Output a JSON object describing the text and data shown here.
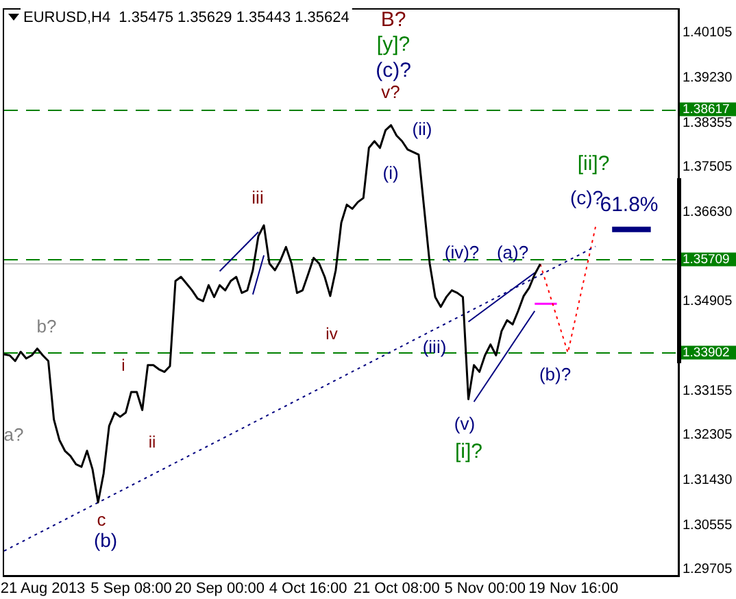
{
  "chart_data": {
    "type": "line",
    "title": "EURUSD,H4  1.35475 1.35629 1.35443 1.35624",
    "categories": [
      null,
      null,
      null,
      null,
      null,
      null,
      null,
      "21 Aug 2013",
      null,
      null,
      null,
      null,
      null,
      null,
      null,
      null,
      null,
      null,
      null,
      null,
      null,
      null,
      null,
      "5 Sep 08:00",
      null,
      null,
      null,
      null,
      null,
      null,
      null,
      null,
      null,
      null,
      null,
      null,
      null,
      null,
      null,
      "20 Sep 00:00",
      null,
      null,
      null,
      null,
      null,
      null,
      null,
      null,
      null,
      null,
      null,
      null,
      null,
      null,
      null,
      "4 Oct 16:00",
      null,
      null,
      null,
      null,
      null,
      null,
      null,
      null,
      null,
      null,
      null,
      null,
      null,
      null,
      null,
      "21 Oct 08:00",
      null,
      null,
      null,
      null,
      null,
      null,
      null,
      null,
      null,
      null,
      null,
      null,
      null,
      null,
      null,
      "5 Nov 00:00",
      null,
      null,
      null,
      null,
      null,
      null,
      null,
      null,
      null,
      null,
      null,
      null,
      null,
      null,
      null,
      "19 Nov 16:00",
      null,
      null,
      null,
      null,
      null,
      null,
      null,
      null,
      null,
      null,
      null,
      null,
      null,
      null,
      null,
      null,
      null,
      null,
      null
    ],
    "series": [
      {
        "color": "#000000",
        "values": [
          1.3387,
          1.3385,
          1.3374,
          1.3392,
          1.3379,
          1.3385,
          1.3398,
          1.3385,
          1.3374,
          1.3261,
          1.3221,
          1.32,
          1.319,
          1.3174,
          1.3169,
          1.32,
          1.3164,
          1.31,
          1.3156,
          1.3248,
          1.3274,
          1.3266,
          1.3274,
          1.3314,
          1.3314,
          1.3279,
          1.3366,
          1.3366,
          1.3358,
          1.3353,
          1.3364,
          1.3529,
          1.3537,
          1.3524,
          1.3511,
          1.3495,
          1.349,
          1.3521,
          1.3498,
          1.3521,
          1.3511,
          1.3529,
          1.3537,
          1.3506,
          1.3511,
          1.355,
          1.3616,
          1.3637,
          1.3563,
          1.355,
          1.3569,
          1.3595,
          1.3563,
          1.3506,
          1.3511,
          1.3542,
          1.3574,
          1.3563,
          1.3537,
          1.35,
          1.355,
          1.3642,
          1.3677,
          1.3669,
          1.3682,
          1.369,
          1.3787,
          1.38,
          1.3787,
          1.3821,
          1.3831,
          1.3811,
          1.38,
          1.3784,
          1.3779,
          1.3774,
          1.3669,
          1.3563,
          1.3498,
          1.3479,
          1.3498,
          1.3511,
          1.3506,
          1.3498,
          1.33,
          1.3366,
          1.3353,
          1.3385,
          1.3406,
          1.3385,
          1.3432,
          1.3453,
          1.3445,
          1.3471,
          1.35,
          1.3516,
          1.3542,
          1.3562,
          null,
          null,
          null,
          null,
          null,
          null,
          null,
          null,
          null,
          null,
          null,
          null,
          null,
          null,
          null,
          null,
          null,
          null,
          null,
          null,
          null,
          null,
          null,
          null,
          null
        ]
      },
      {
        "color": "#000080",
        "line_style": "dotted",
        "values": [
          1.3006,
          null,
          null,
          null,
          null,
          null,
          null,
          null,
          null,
          null,
          null,
          null,
          null,
          null,
          null,
          null,
          null,
          null,
          null,
          null,
          null,
          null,
          null,
          null,
          null,
          null,
          null,
          null,
          null,
          null,
          null,
          null,
          null,
          null,
          null,
          null,
          null,
          null,
          null,
          null,
          null,
          null,
          null,
          null,
          null,
          null,
          null,
          null,
          null,
          null,
          null,
          null,
          null,
          null,
          null,
          null,
          null,
          null,
          null,
          null,
          null,
          null,
          null,
          null,
          null,
          null,
          null,
          null,
          null,
          null,
          null,
          null,
          null,
          null,
          null,
          null,
          null,
          null,
          null,
          null,
          null,
          null,
          null,
          null,
          null,
          null,
          null,
          null,
          null,
          null,
          null,
          null,
          null,
          null,
          null,
          null,
          null,
          null,
          null,
          null,
          null,
          null,
          null,
          null,
          null,
          null,
          null,
          1.3596,
          null,
          null,
          null,
          null,
          null,
          null,
          null,
          null,
          null,
          null,
          null,
          null,
          null,
          null,
          null
        ]
      },
      {
        "color": "#000080",
        "values": [
          null,
          null,
          null,
          null,
          null,
          null,
          null,
          null,
          null,
          null,
          null,
          null,
          null,
          null,
          null,
          null,
          null,
          null,
          null,
          null,
          null,
          null,
          null,
          null,
          null,
          null,
          null,
          null,
          null,
          null,
          null,
          null,
          null,
          null,
          null,
          null,
          null,
          null,
          null,
          1.3548,
          null,
          null,
          null,
          null,
          null,
          null,
          1.3624,
          null,
          null,
          null,
          null,
          null,
          null,
          null,
          null,
          null,
          null,
          null,
          null,
          null,
          null,
          null,
          null,
          null,
          null,
          null,
          null,
          null,
          null,
          null,
          null,
          null,
          null,
          null,
          null,
          null,
          null,
          null,
          null,
          null,
          null,
          null,
          null,
          null,
          null,
          null,
          null,
          null,
          null,
          null,
          null,
          null,
          null,
          null,
          null,
          null,
          null,
          null,
          null,
          null,
          null,
          null,
          null,
          null,
          null,
          null,
          null,
          null,
          null,
          null,
          null,
          null,
          null,
          null,
          null,
          null,
          null,
          null,
          null,
          null,
          null,
          null,
          null
        ]
      },
      {
        "color": "#000080",
        "values": [
          null,
          null,
          null,
          null,
          null,
          null,
          null,
          null,
          null,
          null,
          null,
          null,
          null,
          null,
          null,
          null,
          null,
          null,
          null,
          null,
          null,
          null,
          null,
          null,
          null,
          null,
          null,
          null,
          null,
          null,
          null,
          null,
          null,
          null,
          null,
          null,
          null,
          null,
          null,
          null,
          null,
          null,
          null,
          null,
          null,
          1.3503,
          null,
          1.3579,
          null,
          null,
          null,
          null,
          null,
          null,
          null,
          null,
          null,
          null,
          null,
          null,
          null,
          null,
          null,
          null,
          null,
          null,
          null,
          null,
          null,
          null,
          null,
          null,
          null,
          null,
          null,
          null,
          null,
          null,
          null,
          null,
          null,
          null,
          null,
          null,
          null,
          null,
          null,
          null,
          null,
          null,
          null,
          null,
          null,
          null,
          null,
          null,
          null,
          null,
          null,
          null,
          null,
          null,
          null,
          null,
          null,
          null,
          null,
          null,
          null,
          null,
          null,
          null,
          null,
          null,
          null,
          null,
          null,
          null,
          null,
          null,
          null,
          null,
          null
        ]
      },
      {
        "color": "#000080",
        "values": [
          null,
          null,
          null,
          null,
          null,
          null,
          null,
          null,
          null,
          null,
          null,
          null,
          null,
          null,
          null,
          null,
          null,
          null,
          null,
          null,
          null,
          null,
          null,
          null,
          null,
          null,
          null,
          null,
          null,
          null,
          null,
          null,
          null,
          null,
          null,
          null,
          null,
          null,
          null,
          null,
          null,
          null,
          null,
          null,
          null,
          null,
          null,
          null,
          null,
          null,
          null,
          null,
          null,
          null,
          null,
          null,
          null,
          null,
          null,
          null,
          null,
          null,
          null,
          null,
          null,
          null,
          null,
          null,
          null,
          null,
          null,
          null,
          null,
          null,
          null,
          null,
          null,
          null,
          null,
          null,
          null,
          null,
          null,
          null,
          1.345,
          null,
          null,
          null,
          null,
          null,
          null,
          null,
          null,
          null,
          null,
          null,
          1.3545,
          null,
          null,
          null,
          null,
          null,
          null,
          null,
          null,
          null,
          null,
          null,
          null,
          null,
          null,
          null,
          null,
          null,
          null,
          null,
          null,
          null,
          null,
          null,
          null,
          null,
          null
        ]
      },
      {
        "color": "#000080",
        "values": [
          null,
          null,
          null,
          null,
          null,
          null,
          null,
          null,
          null,
          null,
          null,
          null,
          null,
          null,
          null,
          null,
          null,
          null,
          null,
          null,
          null,
          null,
          null,
          null,
          null,
          null,
          null,
          null,
          null,
          null,
          null,
          null,
          null,
          null,
          null,
          null,
          null,
          null,
          null,
          null,
          null,
          null,
          null,
          null,
          null,
          null,
          null,
          null,
          null,
          null,
          null,
          null,
          null,
          null,
          null,
          null,
          null,
          null,
          null,
          null,
          null,
          null,
          null,
          null,
          null,
          null,
          null,
          null,
          null,
          null,
          null,
          null,
          null,
          null,
          null,
          null,
          null,
          null,
          null,
          null,
          null,
          null,
          null,
          null,
          null,
          1.3295,
          null,
          null,
          null,
          null,
          null,
          null,
          null,
          null,
          null,
          null,
          1.3471,
          null,
          null,
          null,
          null,
          null,
          null,
          null,
          null,
          null,
          null,
          null,
          null,
          null,
          null,
          null,
          null,
          null,
          null,
          null,
          null,
          null,
          null,
          null,
          null,
          null,
          null
        ]
      },
      {
        "color": "#ff0000",
        "line_style": "dotted",
        "values": [
          null,
          null,
          null,
          null,
          null,
          null,
          null,
          null,
          null,
          null,
          null,
          null,
          null,
          null,
          null,
          null,
          null,
          null,
          null,
          null,
          null,
          null,
          null,
          null,
          null,
          null,
          null,
          null,
          null,
          null,
          null,
          null,
          null,
          null,
          null,
          null,
          null,
          null,
          null,
          null,
          null,
          null,
          null,
          null,
          null,
          null,
          null,
          null,
          null,
          null,
          null,
          null,
          null,
          null,
          null,
          null,
          null,
          null,
          null,
          null,
          null,
          null,
          null,
          null,
          null,
          null,
          null,
          null,
          null,
          null,
          null,
          null,
          null,
          null,
          null,
          null,
          null,
          null,
          null,
          null,
          null,
          null,
          null,
          null,
          null,
          null,
          null,
          null,
          null,
          null,
          null,
          null,
          null,
          null,
          null,
          null,
          null,
          1.3562,
          null,
          null,
          null,
          null,
          1.339,
          null,
          null,
          null,
          null,
          1.3634,
          null,
          null,
          null,
          null,
          null,
          null,
          null,
          null,
          null,
          null,
          null,
          null,
          null,
          null,
          null
        ]
      },
      {
        "color": "#ff00ff",
        "values": [
          null,
          null,
          null,
          null,
          null,
          null,
          null,
          null,
          null,
          null,
          null,
          null,
          null,
          null,
          null,
          null,
          null,
          null,
          null,
          null,
          null,
          null,
          null,
          null,
          null,
          null,
          null,
          null,
          null,
          null,
          null,
          null,
          null,
          null,
          null,
          null,
          null,
          null,
          null,
          null,
          null,
          null,
          null,
          null,
          null,
          null,
          null,
          null,
          null,
          null,
          null,
          null,
          null,
          null,
          null,
          null,
          null,
          null,
          null,
          null,
          null,
          null,
          null,
          null,
          null,
          null,
          null,
          null,
          null,
          null,
          null,
          null,
          null,
          null,
          null,
          null,
          null,
          null,
          null,
          null,
          null,
          null,
          null,
          null,
          null,
          null,
          null,
          null,
          null,
          null,
          null,
          null,
          null,
          null,
          null,
          null,
          1.3485,
          null,
          null,
          null,
          1.3485,
          null,
          null,
          null,
          null,
          null,
          null,
          null,
          null,
          null,
          null,
          null,
          null,
          null,
          null,
          null,
          null,
          null,
          null,
          null,
          null,
          null,
          null
        ]
      },
      {
        "color": "#000080",
        "values": [
          null,
          null,
          null,
          null,
          null,
          null,
          null,
          null,
          null,
          null,
          null,
          null,
          null,
          null,
          null,
          null,
          null,
          null,
          null,
          null,
          null,
          null,
          null,
          null,
          null,
          null,
          null,
          null,
          null,
          null,
          null,
          null,
          null,
          null,
          null,
          null,
          null,
          null,
          null,
          null,
          null,
          null,
          null,
          null,
          null,
          null,
          null,
          null,
          null,
          null,
          null,
          null,
          null,
          null,
          null,
          null,
          null,
          null,
          null,
          null,
          null,
          null,
          null,
          null,
          null,
          null,
          null,
          null,
          null,
          null,
          null,
          null,
          null,
          null,
          null,
          null,
          null,
          null,
          null,
          null,
          null,
          null,
          null,
          null,
          null,
          null,
          null,
          null,
          null,
          null,
          null,
          null,
          null,
          null,
          null,
          null,
          null,
          null,
          null,
          null,
          null,
          null,
          null,
          null,
          null,
          null,
          null,
          null,
          null,
          null,
          1.3629,
          null,
          null,
          null,
          null,
          null,
          null,
          1.3629,
          null,
          null,
          null,
          null,
          null
        ]
      }
    ],
    "ylim": [
      1.2958,
      1.4055
    ],
    "yticks": [
      {
        "value": 1.29705,
        "label": "1.29705"
      },
      {
        "value": 1.30555,
        "label": "1.30555"
      },
      {
        "value": 1.3143,
        "label": "1.31430"
      },
      {
        "value": 1.32305,
        "label": "1.32305"
      },
      {
        "value": 1.33155,
        "label": "1.33155"
      },
      {
        "value": 1.34905,
        "label": "1.34905"
      },
      {
        "value": 1.3663,
        "label": "1.36630"
      },
      {
        "value": 1.37505,
        "label": "1.37505"
      },
      {
        "value": 1.38355,
        "label": "1.38355"
      },
      {
        "value": 1.3923,
        "label": "1.39230"
      },
      {
        "value": 1.40105,
        "label": "1.40105"
      }
    ],
    "ref_lines": [
      {
        "axis": "y",
        "value": 1.38617,
        "label": "1.38617",
        "color": "#008000",
        "line_style": "dashed"
      },
      {
        "axis": "y",
        "value": 1.35709,
        "label": "1.35709",
        "color": "#008000",
        "line_style": "dashed"
      },
      {
        "axis": "y",
        "value": 1.33902,
        "label": "1.33902",
        "color": "#008000",
        "line_style": "dashed"
      },
      {
        "axis": "y",
        "value": 1.35624,
        "color": "#c0c0c0",
        "line_style": "solid"
      }
    ],
    "annotations": [
      "B?",
      "[y]?",
      "(c)?",
      "v?",
      "(ii)",
      "(i)",
      "iii",
      "iv",
      "i",
      "ii",
      "a?",
      "b?",
      "c",
      "(b)",
      "(iii)",
      "(iv)?",
      "(a)?",
      "(v)",
      "[i]?",
      "(b)?",
      "(c)?",
      "[ii]?",
      "61.8%"
    ],
    "grid": false,
    "legend": false,
    "marker": "none",
    "line_style": "solid"
  }
}
